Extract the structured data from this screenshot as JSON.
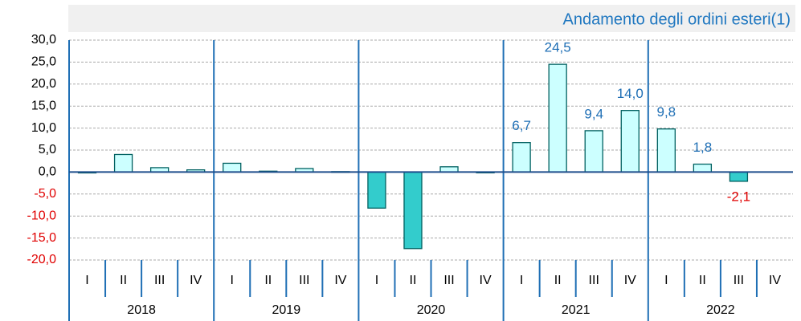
{
  "chart_data": {
    "type": "bar",
    "title": "Andamento degli ordini esteri(1)",
    "categories": [
      "I",
      "II",
      "III",
      "IV",
      "I",
      "II",
      "III",
      "IV",
      "I",
      "II",
      "III",
      "IV",
      "I",
      "II",
      "III",
      "IV",
      "I",
      "II",
      "III",
      "IV"
    ],
    "groups": [
      "2018",
      "2019",
      "2020",
      "2021",
      "2022"
    ],
    "values": [
      -0.2,
      4.0,
      1.0,
      0.5,
      2.0,
      0.2,
      0.8,
      0.1,
      -8.2,
      -17.4,
      1.2,
      -0.1,
      6.7,
      24.5,
      9.4,
      14.0,
      9.8,
      1.8,
      -2.1,
      null
    ],
    "value_labels": [
      null,
      null,
      null,
      null,
      null,
      null,
      null,
      null,
      null,
      null,
      null,
      null,
      "6,7",
      "24,5",
      "9,4",
      "14,0",
      "9,8",
      "1,8",
      "-2,1",
      null
    ],
    "color": "#ccffff",
    "negative_color": "#33cccc",
    "label_color": "#1f6fb5",
    "negative_label_color": "#e00000",
    "ylim": [
      -20,
      30
    ],
    "yticks": [
      {
        "value": -20,
        "label": "-20,0"
      },
      {
        "value": -15,
        "label": "-15,0"
      },
      {
        "value": -10,
        "label": "-10,0"
      },
      {
        "value": -5,
        "label": "-5,0"
      },
      {
        "value": 0,
        "label": "0,0"
      },
      {
        "value": 5,
        "label": "5,0"
      },
      {
        "value": 10,
        "label": "10,0"
      },
      {
        "value": 15,
        "label": "15,0"
      },
      {
        "value": 20,
        "label": "20,0"
      },
      {
        "value": 25,
        "label": "25,0"
      },
      {
        "value": 30,
        "label": "30,0"
      }
    ],
    "grid": true
  }
}
